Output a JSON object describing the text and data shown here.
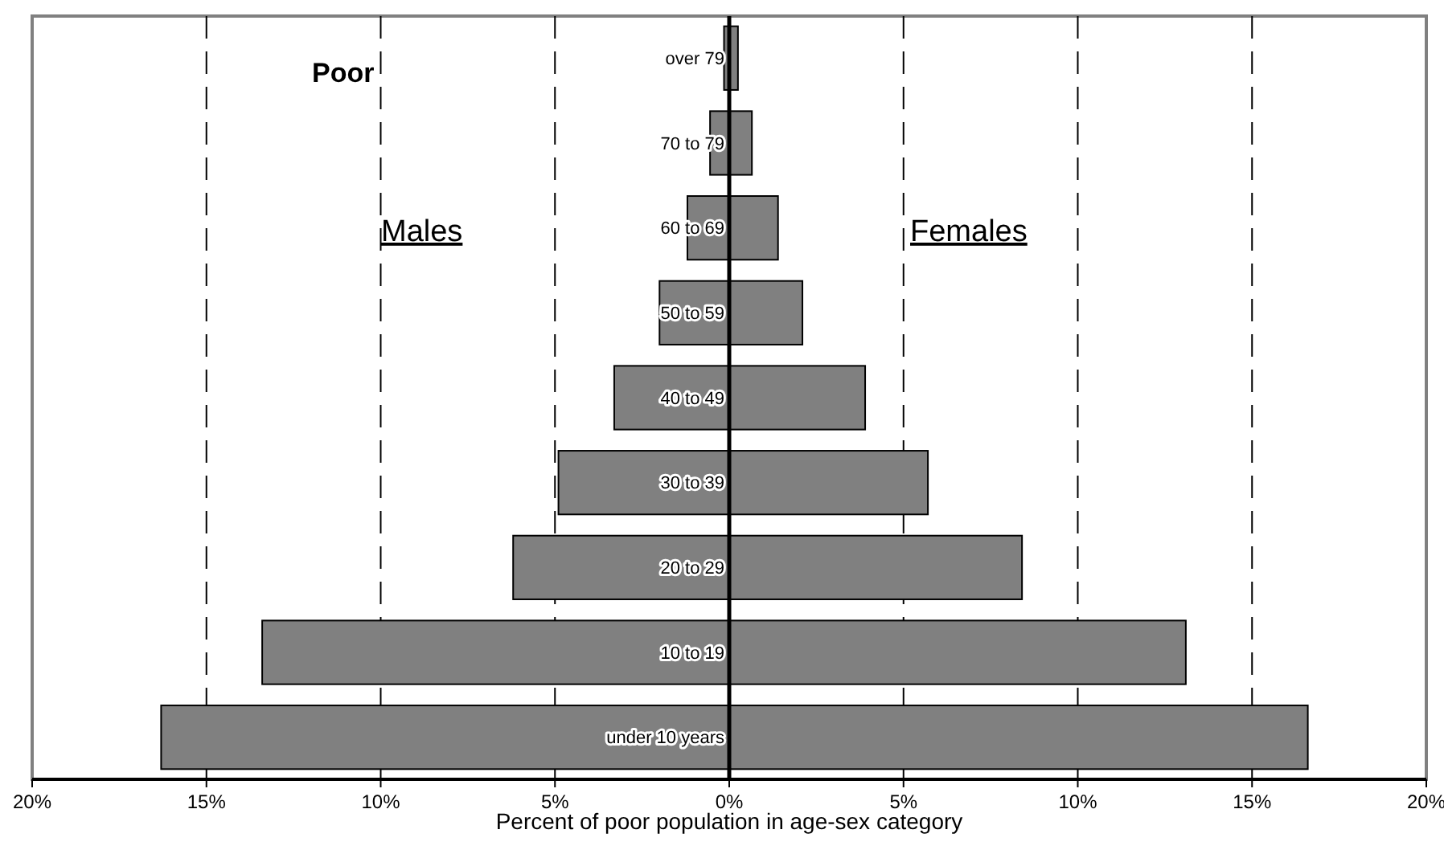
{
  "chart_data": {
    "type": "bar",
    "orientation": "horizontal",
    "stacked": true,
    "xlabel": "Percent of poor population in age-sex category",
    "categories": [
      "over 79",
      "70 to 79",
      "60 to 69",
      "50 to 59",
      "40 to 49",
      "30 to 39",
      "20 to 29",
      "10 to 19",
      "under 10 years"
    ],
    "series": [
      {
        "color": "#808080",
        "values": [
          -0.15,
          -0.55,
          -1.2,
          -2.0,
          -3.3,
          -4.9,
          -6.2,
          -13.4,
          -16.3
        ]
      },
      {
        "color": "#808080",
        "values": [
          0.25,
          0.65,
          1.4,
          2.1,
          3.9,
          5.7,
          8.4,
          13.1,
          16.6
        ]
      }
    ],
    "xlim": [
      -20,
      20
    ],
    "xticks": [
      {
        "value": -20,
        "label": "20%"
      },
      {
        "value": -15,
        "label": "15%"
      },
      {
        "value": -10,
        "label": "10%"
      },
      {
        "value": -5,
        "label": "5%"
      },
      {
        "value": 0,
        "label": "0%"
      },
      {
        "value": 5,
        "label": "5%"
      },
      {
        "value": 10,
        "label": "10%"
      },
      {
        "value": 15,
        "label": "15%"
      },
      {
        "value": 20,
        "label": "20%"
      }
    ],
    "grid": "x",
    "annotations": [
      "Poor",
      "Males",
      "Females"
    ]
  }
}
